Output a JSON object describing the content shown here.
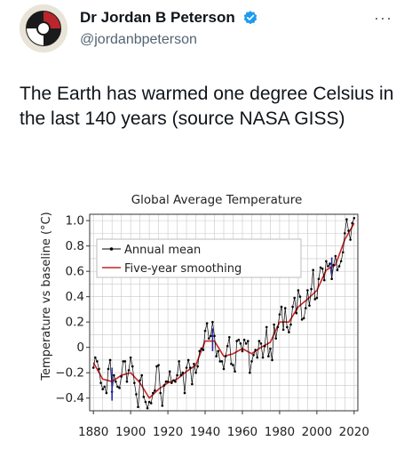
{
  "tweet": {
    "author_name": "Dr Jordan B Peterson",
    "handle": "@jordanbpeterson",
    "more_label": "···",
    "text": "The Earth has warmed one degree Celsius in the last 140 years (source NASA GISS)"
  },
  "colors": {
    "annual": "#000000",
    "smoothing": "#cc2222",
    "error_bar": "#2a2aa8",
    "grid": "#c8c8c8",
    "verified": "#1d9bf0"
  },
  "chart_data": {
    "type": "line",
    "title": "Global Average Temperature",
    "xlabel": "",
    "ylabel": "Temperature vs baseline (°C)",
    "xlim": [
      1878,
      2022
    ],
    "ylim": [
      -0.5,
      1.05
    ],
    "xticks": [
      1880,
      1900,
      1920,
      1940,
      1960,
      1980,
      2000,
      2020
    ],
    "yticks": [
      -0.4,
      -0.2,
      0,
      0.2,
      0.4,
      0.6,
      0.8,
      1.0
    ],
    "ytick_labels": [
      "−0.4",
      "−0.2",
      "0",
      "0.2",
      "0.4",
      "0.6",
      "0.8",
      "1.0"
    ],
    "grid": true,
    "legend_position": "top-left",
    "series": [
      {
        "name": "Annual mean",
        "style": "line-with-points",
        "x": [
          1880,
          1881,
          1882,
          1883,
          1884,
          1885,
          1886,
          1887,
          1888,
          1889,
          1890,
          1891,
          1892,
          1893,
          1894,
          1895,
          1896,
          1897,
          1898,
          1899,
          1900,
          1901,
          1902,
          1903,
          1904,
          1905,
          1906,
          1907,
          1908,
          1909,
          1910,
          1911,
          1912,
          1913,
          1914,
          1915,
          1916,
          1917,
          1918,
          1919,
          1920,
          1921,
          1922,
          1923,
          1924,
          1925,
          1926,
          1927,
          1928,
          1929,
          1930,
          1931,
          1932,
          1933,
          1934,
          1935,
          1936,
          1937,
          1938,
          1939,
          1940,
          1941,
          1942,
          1943,
          1944,
          1945,
          1946,
          1947,
          1948,
          1949,
          1950,
          1951,
          1952,
          1953,
          1954,
          1955,
          1956,
          1957,
          1958,
          1959,
          1960,
          1961,
          1962,
          1963,
          1964,
          1965,
          1966,
          1967,
          1968,
          1969,
          1970,
          1971,
          1972,
          1973,
          1974,
          1975,
          1976,
          1977,
          1978,
          1979,
          1980,
          1981,
          1982,
          1983,
          1984,
          1985,
          1986,
          1987,
          1988,
          1989,
          1990,
          1991,
          1992,
          1993,
          1994,
          1995,
          1996,
          1997,
          1998,
          1999,
          2000,
          2001,
          2002,
          2003,
          2004,
          2005,
          2006,
          2007,
          2008,
          2009,
          2010,
          2011,
          2012,
          2013,
          2014,
          2015,
          2016,
          2017,
          2018,
          2019,
          2020
        ],
        "values": [
          -0.16,
          -0.08,
          -0.11,
          -0.17,
          -0.28,
          -0.33,
          -0.31,
          -0.36,
          -0.17,
          -0.1,
          -0.35,
          -0.22,
          -0.27,
          -0.31,
          -0.32,
          -0.23,
          -0.11,
          -0.11,
          -0.27,
          -0.18,
          -0.08,
          -0.15,
          -0.28,
          -0.37,
          -0.47,
          -0.26,
          -0.22,
          -0.39,
          -0.43,
          -0.48,
          -0.43,
          -0.44,
          -0.36,
          -0.34,
          -0.15,
          -0.14,
          -0.36,
          -0.46,
          -0.3,
          -0.27,
          -0.27,
          -0.19,
          -0.28,
          -0.26,
          -0.27,
          -0.22,
          -0.11,
          -0.22,
          -0.2,
          -0.36,
          -0.16,
          -0.1,
          -0.16,
          -0.29,
          -0.13,
          -0.2,
          -0.15,
          -0.03,
          -0.01,
          -0.02,
          0.13,
          0.19,
          0.07,
          0.09,
          0.2,
          0.09,
          -0.07,
          -0.03,
          -0.11,
          -0.11,
          -0.17,
          -0.07,
          0.01,
          0.08,
          -0.13,
          -0.14,
          -0.19,
          0.05,
          0.06,
          0.03,
          -0.03,
          0.06,
          0.03,
          0.05,
          -0.2,
          -0.11,
          -0.06,
          -0.02,
          -0.08,
          0.05,
          0.03,
          -0.08,
          0.01,
          0.16,
          -0.07,
          -0.01,
          -0.1,
          0.18,
          0.07,
          0.16,
          0.26,
          0.32,
          0.14,
          0.31,
          0.16,
          0.12,
          0.18,
          0.32,
          0.39,
          0.27,
          0.45,
          0.4,
          0.22,
          0.23,
          0.31,
          0.45,
          0.33,
          0.46,
          0.61,
          0.38,
          0.39,
          0.54,
          0.63,
          0.62,
          0.53,
          0.68,
          0.64,
          0.66,
          0.54,
          0.65,
          0.72,
          0.61,
          0.64,
          0.68,
          0.75,
          0.9,
          1.01,
          0.92,
          0.85,
          0.98,
          1.02
        ]
      },
      {
        "name": "Five-year smoothing",
        "style": "line",
        "x": [
          1880,
          1885,
          1890,
          1895,
          1900,
          1905,
          1910,
          1915,
          1920,
          1925,
          1930,
          1935,
          1940,
          1945,
          1950,
          1955,
          1960,
          1965,
          1970,
          1975,
          1980,
          1985,
          1990,
          1995,
          2000,
          2005,
          2010,
          2015,
          2020
        ],
        "values": [
          -0.12,
          -0.25,
          -0.27,
          -0.22,
          -0.2,
          -0.28,
          -0.4,
          -0.33,
          -0.28,
          -0.25,
          -0.19,
          -0.14,
          0.05,
          0.05,
          -0.07,
          -0.05,
          -0.01,
          -0.05,
          0.0,
          0.04,
          0.2,
          0.2,
          0.32,
          0.38,
          0.45,
          0.61,
          0.65,
          0.85,
          0.98
        ]
      }
    ],
    "error_bars": [
      {
        "x": 1890,
        "low": -0.42,
        "high": -0.16
      },
      {
        "x": 1944,
        "low": -0.03,
        "high": 0.15
      },
      {
        "x": 2008,
        "low": 0.57,
        "high": 0.71
      }
    ]
  }
}
